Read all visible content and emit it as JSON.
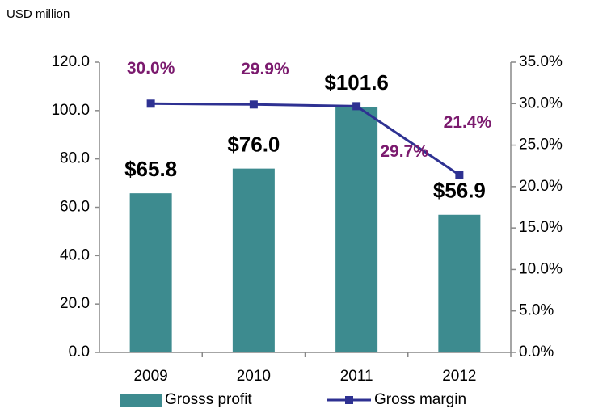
{
  "chart_data": {
    "type": "bar",
    "y_label": "USD million",
    "categories": [
      "2009",
      "2010",
      "2011",
      "2012"
    ],
    "series": [
      {
        "name": "Grosss profit",
        "type": "bar",
        "color": "#3d8b8f",
        "values": [
          65.8,
          76.0,
          101.6,
          56.9
        ],
        "value_labels": [
          "$65.8",
          "$76.0",
          "$101.6",
          "$56.9"
        ]
      },
      {
        "name": "Gross margin",
        "type": "line",
        "axis": "y2",
        "color": "#2e3192",
        "values": [
          30.0,
          29.9,
          29.7,
          21.4
        ],
        "value_labels": [
          "30.0%",
          "29.9%",
          "29.7%",
          "21.4%"
        ],
        "label_color": "#7b1a6e"
      }
    ],
    "ylim": [
      0,
      120
    ],
    "yticks": [
      {
        "value": 0,
        "label": "0.0"
      },
      {
        "value": 20,
        "label": "20.0"
      },
      {
        "value": 40,
        "label": "40.0"
      },
      {
        "value": 60,
        "label": "60.0"
      },
      {
        "value": 80,
        "label": "80.0"
      },
      {
        "value": 100,
        "label": "100.0"
      },
      {
        "value": 120,
        "label": "120.0"
      }
    ],
    "y2lim": [
      0,
      35
    ],
    "y2ticks": [
      {
        "value": 0,
        "label": "0.0%"
      },
      {
        "value": 5,
        "label": "5.0%"
      },
      {
        "value": 10,
        "label": "10.0%"
      },
      {
        "value": 15,
        "label": "15.0%"
      },
      {
        "value": 20,
        "label": "20.0%"
      },
      {
        "value": 25,
        "label": "25.0%"
      },
      {
        "value": 30,
        "label": "30.0%"
      },
      {
        "value": 35,
        "label": "35.0%"
      }
    ],
    "legend": "bottom"
  }
}
